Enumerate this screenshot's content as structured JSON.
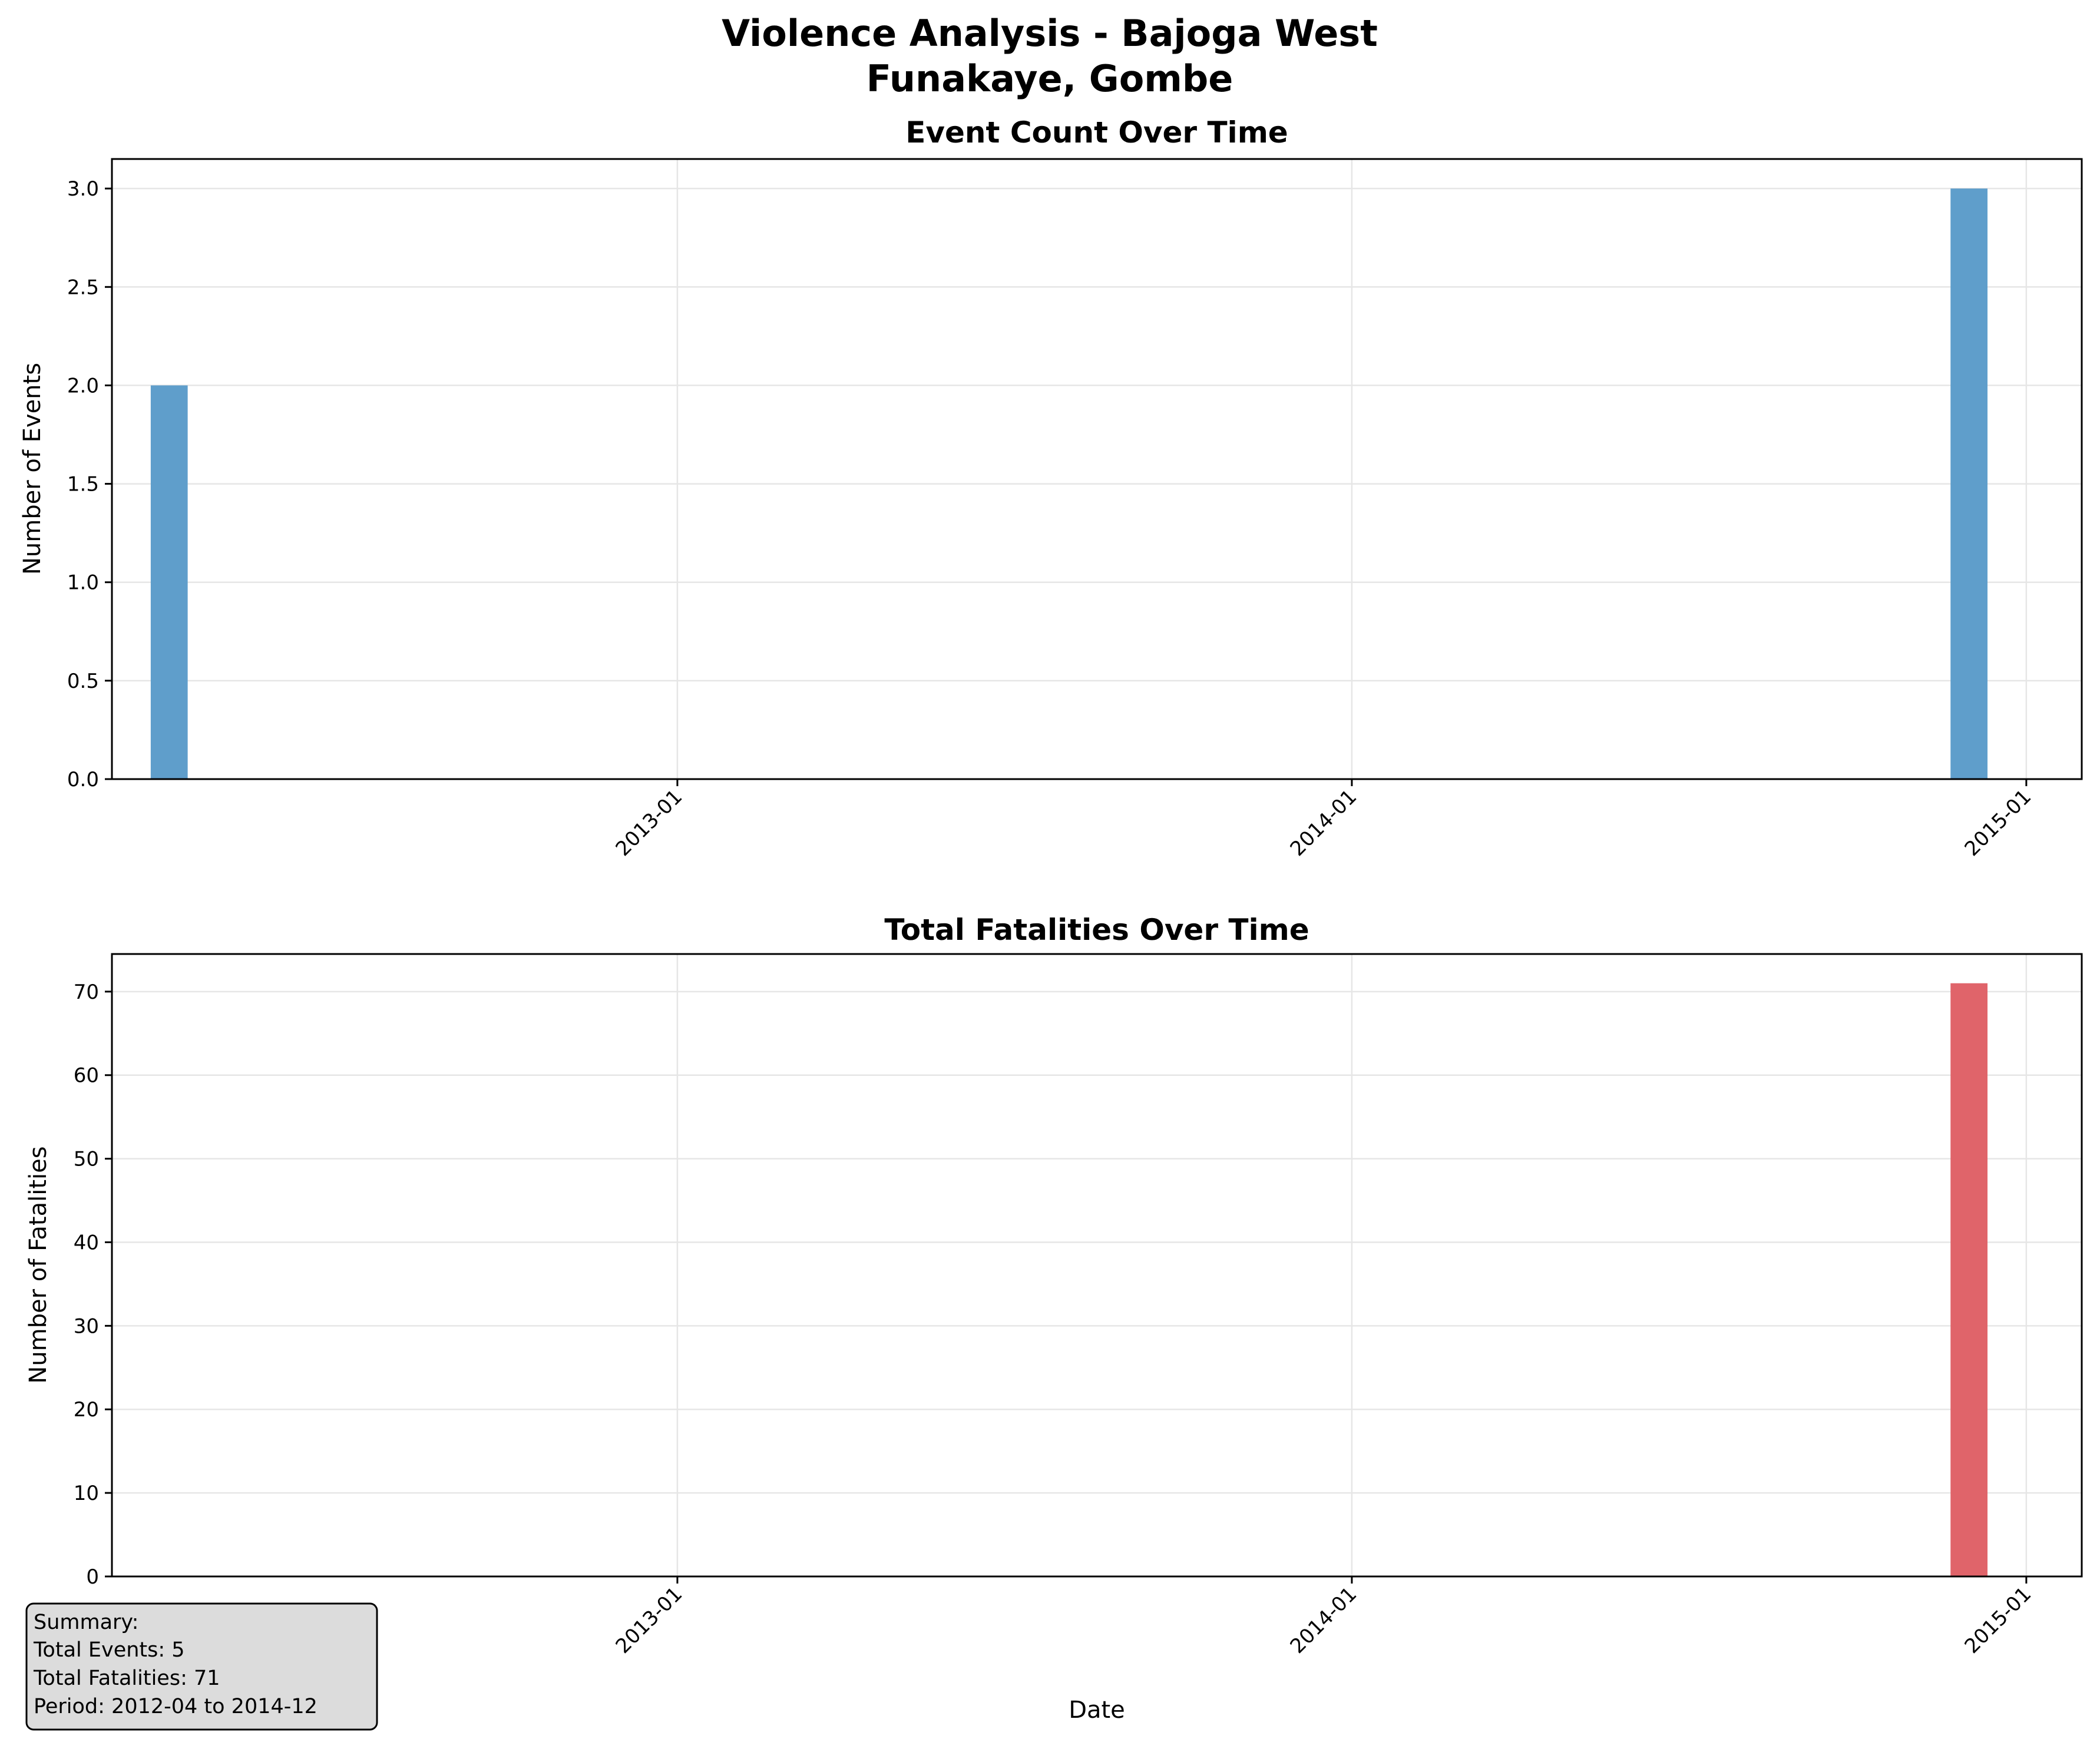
{
  "figure": {
    "title_line1": "Violence Analysis - Bajoga West",
    "title_line2": "Funakaye, Gombe"
  },
  "colors": {
    "events_bar": "#5f9ecb",
    "fatalities_bar": "#e0646a",
    "grid": "#e6e6e6",
    "summary_bg": "#dcdcdc"
  },
  "chart_data": [
    {
      "type": "bar",
      "title": "Event Count Over Time",
      "ylabel": "Number of Events",
      "xlabel": "",
      "x_axis": "date",
      "xlim": [
        "2012-03-01",
        "2015-01-31"
      ],
      "ylim": [
        0,
        3.15
      ],
      "xticks": [
        "2013-01",
        "2014-01",
        "2015-01"
      ],
      "yticks": [
        "0.0",
        "0.5",
        "1.0",
        "1.5",
        "2.0",
        "2.5",
        "3.0"
      ],
      "grid": true,
      "bars": [
        {
          "month": "2012-04",
          "value": 2
        },
        {
          "month": "2014-12",
          "value": 3
        }
      ]
    },
    {
      "type": "bar",
      "title": "Total Fatalities Over Time",
      "ylabel": "Number of Fatalities",
      "xlabel": "Date",
      "x_axis": "date",
      "xlim": [
        "2012-03-01",
        "2015-01-31"
      ],
      "ylim": [
        0,
        74.5
      ],
      "xticks": [
        "2013-01",
        "2014-01",
        "2015-01"
      ],
      "yticks": [
        "0",
        "10",
        "20",
        "30",
        "40",
        "50",
        "60",
        "70"
      ],
      "grid": true,
      "bars": [
        {
          "month": "2014-12",
          "value": 71
        }
      ]
    }
  ],
  "summary": {
    "heading": "Summary:",
    "events": "Total Events: 5",
    "fatalities": "Total Fatalities: 71",
    "period": "Period: 2012-04 to 2014-12"
  }
}
